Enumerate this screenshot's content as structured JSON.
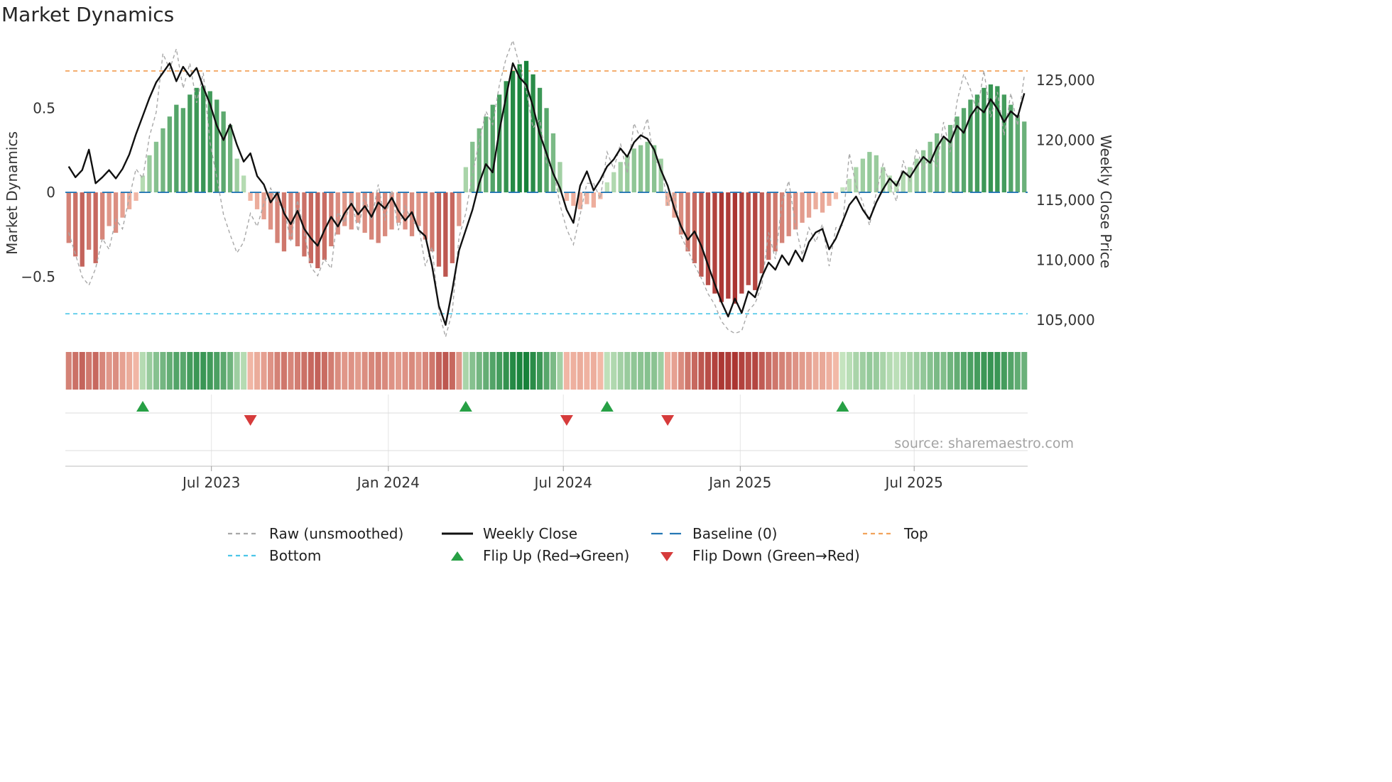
{
  "title": "Market Dynamics",
  "source": "source: sharemaestro.com",
  "left_axis": {
    "label": "Market Dynamics",
    "ticks": [
      {
        "label": "0.5",
        "value": 0.5
      },
      {
        "label": "0",
        "value": 0
      },
      {
        "label": "−0.5",
        "value": -0.5
      }
    ]
  },
  "right_axis": {
    "label": "Weekly Close Price",
    "ticks": [
      {
        "label": "125,000",
        "value": 125000
      },
      {
        "label": "120,000",
        "value": 120000
      },
      {
        "label": "115,000",
        "value": 115000
      },
      {
        "label": "110,000",
        "value": 110000
      },
      {
        "label": "105,000",
        "value": 105000
      }
    ]
  },
  "colors": {
    "raw": "#a8a8a8",
    "close": "#101010",
    "baseline": "#2577b4",
    "top": "#f2a35c",
    "bottom": "#4cc6e8",
    "flip_up": "#27a045",
    "flip_down": "#d63b3b",
    "bar_green_light": "#cce8c4",
    "bar_green_dark": "#17823a",
    "bar_red_light": "#f7c1ae",
    "bar_red_dark": "#9d1c1c"
  },
  "legend": {
    "rows": [
      [
        {
          "label": "Raw (unsmoothed)",
          "swatch": "dash",
          "color": "#a8a8a8",
          "dash": "6 5"
        },
        {
          "label": "Weekly Close",
          "swatch": "solid",
          "color": "#101010"
        },
        {
          "label": "Baseline (0)",
          "swatch": "dash",
          "color": "#2577b4",
          "dash": "16 10"
        },
        {
          "label": "Top",
          "swatch": "dash",
          "color": "#f2a35c",
          "dash": "6 5"
        }
      ],
      [
        {
          "label": "Bottom",
          "swatch": "dash",
          "color": "#4cc6e8",
          "dash": "6 5"
        },
        {
          "label": "Flip Up (Red→Green)",
          "swatch": "tri-up",
          "color": "#27a045"
        },
        {
          "label": "Flip Down (Green→Red)",
          "swatch": "tri-down",
          "color": "#d63b3b"
        }
      ]
    ]
  },
  "chart_data": {
    "type": "combo: weekly oscillator bars (left axis) + line series (right axis) + heat strip + flip markers",
    "x_start_date": "2023-01-30",
    "x_frequency": "weekly",
    "weeks": 143,
    "left_ylim": [
      -0.9,
      0.88
    ],
    "right_ylim": [
      103000,
      128000
    ],
    "baseline": 0,
    "top": 0.72,
    "bottom": -0.72,
    "flip_up_weeks": [
      11,
      59,
      80,
      115
    ],
    "flip_down_weeks": [
      27,
      74,
      89
    ],
    "x_ticks": [
      {
        "label": "Jul 2023",
        "week": 21.71
      },
      {
        "label": "Jan 2024",
        "week": 48.0
      },
      {
        "label": "Jul 2024",
        "week": 74.0
      },
      {
        "label": "Jan 2025",
        "week": 100.29
      },
      {
        "label": "Jul 2025",
        "week": 126.14
      }
    ],
    "series": [
      {
        "name": "Oscillator (bars)",
        "axis": "left",
        "values": [
          -0.3,
          -0.38,
          -0.44,
          -0.34,
          -0.42,
          -0.28,
          -0.2,
          -0.24,
          -0.15,
          -0.1,
          -0.05,
          0.1,
          0.22,
          0.3,
          0.38,
          0.45,
          0.52,
          0.5,
          0.58,
          0.62,
          0.63,
          0.6,
          0.55,
          0.48,
          0.4,
          0.2,
          0.1,
          -0.05,
          -0.1,
          -0.16,
          -0.22,
          -0.3,
          -0.35,
          -0.28,
          -0.32,
          -0.38,
          -0.42,
          -0.45,
          -0.4,
          -0.32,
          -0.25,
          -0.2,
          -0.22,
          -0.18,
          -0.24,
          -0.28,
          -0.3,
          -0.26,
          -0.22,
          -0.18,
          -0.22,
          -0.26,
          -0.2,
          -0.28,
          -0.35,
          -0.44,
          -0.5,
          -0.42,
          -0.2,
          0.15,
          0.3,
          0.38,
          0.45,
          0.52,
          0.58,
          0.66,
          0.72,
          0.76,
          0.78,
          0.7,
          0.62,
          0.5,
          0.35,
          0.18,
          -0.05,
          -0.08,
          -0.1,
          -0.07,
          -0.09,
          -0.04,
          0.06,
          0.12,
          0.18,
          0.22,
          0.26,
          0.28,
          0.3,
          0.28,
          0.2,
          -0.08,
          -0.15,
          -0.25,
          -0.35,
          -0.42,
          -0.5,
          -0.55,
          -0.6,
          -0.65,
          -0.63,
          -0.66,
          -0.6,
          -0.55,
          -0.58,
          -0.48,
          -0.4,
          -0.35,
          -0.3,
          -0.26,
          -0.22,
          -0.18,
          -0.15,
          -0.1,
          -0.12,
          -0.08,
          -0.04,
          0.03,
          0.08,
          0.15,
          0.2,
          0.24,
          0.22,
          0.15,
          0.1,
          0.07,
          0.12,
          0.15,
          0.2,
          0.25,
          0.3,
          0.35,
          0.32,
          0.4,
          0.45,
          0.5,
          0.55,
          0.58,
          0.62,
          0.64,
          0.63,
          0.58,
          0.52,
          0.46,
          0.42
        ]
      },
      {
        "name": "Weekly Close",
        "axis": "right",
        "values": [
          117800,
          116900,
          117500,
          119200,
          116400,
          116900,
          117500,
          116800,
          117600,
          118800,
          120500,
          122000,
          123500,
          124800,
          125600,
          126400,
          124900,
          126100,
          125300,
          126000,
          124400,
          123000,
          121200,
          120000,
          121300,
          119600,
          118200,
          118900,
          117000,
          116300,
          114800,
          115600,
          113900,
          113000,
          114100,
          112600,
          111800,
          111200,
          112500,
          113600,
          112800,
          113900,
          114700,
          113800,
          114500,
          113600,
          114800,
          114300,
          115200,
          114100,
          113300,
          114000,
          112500,
          112000,
          109500,
          106200,
          104600,
          107500,
          110800,
          112500,
          114200,
          116400,
          118000,
          117300,
          120800,
          123600,
          126400,
          125200,
          124600,
          122800,
          120500,
          118900,
          117200,
          116000,
          114200,
          113100,
          116200,
          117400,
          115800,
          116700,
          117800,
          118400,
          119300,
          118600,
          119800,
          120400,
          120100,
          119200,
          117500,
          116200,
          114300,
          112800,
          111700,
          112400,
          111200,
          109600,
          108000,
          106500,
          105300,
          106800,
          105600,
          107400,
          106900,
          108600,
          109800,
          109200,
          110400,
          109600,
          110800,
          109900,
          111500,
          112300,
          112600,
          110900,
          111800,
          113200,
          114600,
          115300,
          114200,
          113400,
          114800,
          115900,
          116800,
          116200,
          117400,
          116900,
          117800,
          118600,
          118100,
          119400,
          120300,
          119800,
          121200,
          120600,
          122000,
          122800,
          122300,
          123400,
          122600,
          121500,
          122400,
          121900,
          123900
        ]
      },
      {
        "name": "Raw (unsmoothed)",
        "axis": "right",
        "values": [
          112300,
          110500,
          108600,
          107900,
          109300,
          111800,
          110900,
          113400,
          112600,
          115200,
          117600,
          116800,
          120300,
          122300,
          127200,
          125900,
          127600,
          124300,
          126400,
          123100,
          125600,
          119800,
          116900,
          113800,
          112100,
          110600,
          111500,
          113900,
          112800,
          114700,
          116000,
          114800,
          114300,
          111600,
          115000,
          112300,
          109400,
          108700,
          110100,
          109300,
          114000,
          113100,
          115100,
          112400,
          115400,
          113300,
          116300,
          113300,
          115800,
          112500,
          114500,
          113200,
          112900,
          109500,
          111100,
          105700,
          103600,
          105700,
          111900,
          113900,
          117200,
          119800,
          122400,
          121300,
          124600,
          126800,
          128300,
          126200,
          124100,
          121000,
          121700,
          118100,
          117600,
          114600,
          112600,
          111300,
          113800,
          116400,
          116400,
          115100,
          119000,
          117600,
          119700,
          117200,
          121400,
          120100,
          121800,
          118200,
          118100,
          114600,
          115500,
          112000,
          110800,
          109600,
          108500,
          107200,
          106300,
          104900,
          104200,
          103900,
          104100,
          105800,
          106400,
          107900,
          112300,
          110100,
          114800,
          116600,
          112900,
          110400,
          112700,
          111500,
          113000,
          109500,
          112700,
          112900,
          118900,
          116200,
          114800,
          112900,
          115600,
          118000,
          116400,
          114900,
          118300,
          116600,
          119300,
          117600,
          118700,
          117800,
          121500,
          119000,
          123200,
          125500,
          124200,
          122300,
          125800,
          121900,
          124000,
          120400,
          123900,
          121200,
          125400
        ]
      }
    ]
  }
}
